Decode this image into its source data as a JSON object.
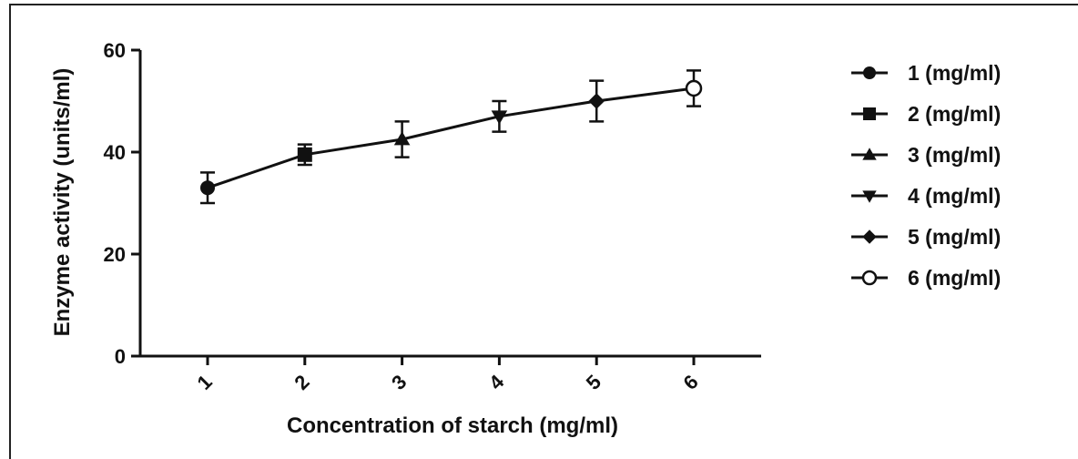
{
  "chart_data": {
    "type": "line",
    "xlabel": "Concentration of starch (mg/ml)",
    "ylabel": "Enzyme activity (units/ml)",
    "ylim": [
      0,
      60
    ],
    "yticks": [
      "0",
      "20",
      "40",
      "60"
    ],
    "categories": [
      "1",
      "2",
      "3",
      "4",
      "5",
      "6"
    ],
    "values": [
      33,
      39.5,
      42.5,
      47,
      50,
      52.5
    ],
    "errors": [
      3,
      2,
      3.5,
      3,
      4,
      3.5
    ],
    "markers": [
      "circle",
      "square",
      "triangle-up",
      "triangle-down",
      "diamond",
      "circle-open"
    ],
    "legend": [
      {
        "label": "1 (mg/ml)",
        "marker": "circle"
      },
      {
        "label": "2 (mg/ml)",
        "marker": "square"
      },
      {
        "label": "3 (mg/ml)",
        "marker": "triangle-up"
      },
      {
        "label": "4 (mg/ml)",
        "marker": "triangle-down"
      },
      {
        "label": "5 (mg/ml)",
        "marker": "diamond"
      },
      {
        "label": "6 (mg/ml)",
        "marker": "circle-open"
      }
    ],
    "legend_position": "right",
    "grid": false,
    "color": "#111111"
  }
}
